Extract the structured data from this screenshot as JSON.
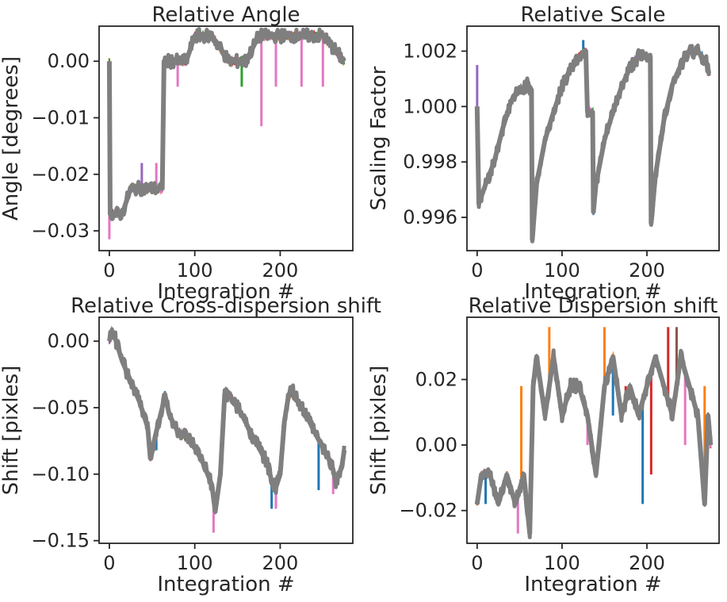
{
  "chart_data": [
    {
      "type": "line",
      "title": "Relative Angle",
      "xlabel": "Integration #",
      "ylabel": "Angle [degrees]",
      "xlim": [
        -12,
        285
      ],
      "ylim": [
        -0.0335,
        0.0062
      ],
      "xticks": [
        0,
        100,
        200
      ],
      "xtick_labels": [
        "0",
        "100",
        "200"
      ],
      "yticks": [
        -0.03,
        -0.02,
        -0.01,
        0.0
      ],
      "ytick_labels": [
        "−0.03",
        "−0.02",
        "−0.01",
        "0.00"
      ],
      "series_colors": [
        "#1f77b4",
        "#ff7f0e",
        "#2ca02c",
        "#d62728",
        "#9467bd",
        "#8c564b",
        "#e377c2"
      ],
      "main_color": "#7f7f7f",
      "main_series": {
        "x": [
          0,
          1,
          2,
          15,
          25,
          30,
          40,
          55,
          62,
          64,
          65,
          70,
          90,
          100,
          110,
          120,
          140,
          150,
          160,
          175,
          200,
          230,
          250,
          275
        ],
        "y": [
          0.0,
          -0.027,
          -0.027,
          -0.027,
          -0.0225,
          -0.0225,
          -0.0225,
          -0.0225,
          -0.0225,
          0.0,
          0.0,
          0.0,
          0.0,
          0.0045,
          0.0045,
          0.0045,
          0.0,
          0.0,
          0.0,
          0.0045,
          0.0045,
          0.0045,
          0.0045,
          0.0
        ]
      },
      "spikes": [
        {
          "x": 0,
          "y": -0.0315,
          "color": "#e377c2"
        },
        {
          "x": 38,
          "y": -0.018,
          "color": "#9467bd"
        },
        {
          "x": 55,
          "y": -0.018,
          "color": "#e377c2"
        },
        {
          "x": 80,
          "y": -0.0045,
          "color": "#e377c2"
        },
        {
          "x": 155,
          "y": -0.0045,
          "color": "#2ca02c"
        },
        {
          "x": 178,
          "y": -0.0115,
          "color": "#e377c2"
        },
        {
          "x": 195,
          "y": -0.0045,
          "color": "#e377c2"
        },
        {
          "x": 225,
          "y": -0.0045,
          "color": "#e377c2"
        },
        {
          "x": 250,
          "y": -0.0045,
          "color": "#e377c2"
        }
      ]
    },
    {
      "type": "line",
      "title": "Relative Scale",
      "xlabel": "Integration #",
      "ylabel": "Scaling Factor",
      "xlim": [
        -12,
        285
      ],
      "ylim": [
        0.9948,
        1.0029
      ],
      "xticks": [
        0,
        100,
        200
      ],
      "xtick_labels": [
        "0",
        "100",
        "200"
      ],
      "yticks": [
        0.996,
        0.998,
        1.0,
        1.002
      ],
      "ytick_labels": [
        "0.996",
        "0.998",
        "1.000",
        "1.002"
      ],
      "series_colors": [
        "#1f77b4",
        "#ff7f0e",
        "#2ca02c",
        "#d62728",
        "#9467bd",
        "#8c564b",
        "#e377c2"
      ],
      "main_color": "#7f7f7f",
      "main_series": {
        "x": [
          0,
          2,
          10,
          20,
          30,
          40,
          50,
          60,
          64,
          65,
          70,
          80,
          90,
          100,
          110,
          120,
          128,
          130,
          131,
          136,
          137,
          140,
          150,
          160,
          170,
          180,
          190,
          200,
          204,
          205,
          210,
          220,
          230,
          240,
          250,
          260,
          270,
          273
        ],
        "y": [
          1.0,
          0.9965,
          0.9972,
          0.998,
          0.9992,
          1.0002,
          1.0006,
          1.0008,
          1.0006,
          0.9952,
          0.9972,
          0.9988,
          0.9998,
          1.0007,
          1.0014,
          1.0018,
          1.002,
          0.9998,
          0.9998,
          0.9998,
          0.9962,
          0.9972,
          0.9988,
          0.9998,
          1.0007,
          1.0014,
          1.0018,
          1.0018,
          1.0018,
          0.9958,
          0.9975,
          0.9995,
          1.0008,
          1.0015,
          1.002,
          1.002,
          1.0016,
          1.0012
        ]
      },
      "spikes": [
        {
          "x": 0,
          "y": 1.0015,
          "color": "#9467bd"
        },
        {
          "x": 65,
          "y": 0.9951,
          "color": "#d62728"
        },
        {
          "x": 125,
          "y": 1.0024,
          "color": "#1f77b4"
        }
      ]
    },
    {
      "type": "line",
      "title": "Relative Cross-dispersion shift",
      "xlabel": "Integration #",
      "ylabel": "Shift [pixles]",
      "xlim": [
        -12,
        285
      ],
      "ylim": [
        -0.152,
        0.018
      ],
      "xticks": [
        0,
        100,
        200
      ],
      "xtick_labels": [
        "0",
        "100",
        "200"
      ],
      "yticks": [
        -0.15,
        -0.1,
        -0.05,
        0.0
      ],
      "ytick_labels": [
        "−0.15",
        "−0.10",
        "−0.05",
        "0.00"
      ],
      "series_colors": [
        "#1f77b4",
        "#ff7f0e",
        "#2ca02c",
        "#d62728",
        "#9467bd",
        "#8c564b",
        "#e377c2"
      ],
      "main_color": "#7f7f7f",
      "main_series": {
        "x": [
          0,
          3,
          8,
          15,
          25,
          35,
          45,
          48,
          55,
          62,
          65,
          70,
          80,
          90,
          100,
          110,
          120,
          124,
          130,
          135,
          136,
          145,
          155,
          165,
          175,
          185,
          190,
          195,
          200,
          205,
          210,
          215,
          220,
          230,
          240,
          250,
          260,
          265,
          272,
          275
        ],
        "y": [
          0.0,
          0.008,
          0.0,
          -0.015,
          -0.03,
          -0.045,
          -0.065,
          -0.088,
          -0.068,
          -0.05,
          -0.04,
          -0.055,
          -0.068,
          -0.072,
          -0.08,
          -0.092,
          -0.108,
          -0.128,
          -0.1,
          -0.04,
          -0.038,
          -0.045,
          -0.055,
          -0.068,
          -0.08,
          -0.092,
          -0.105,
          -0.11,
          -0.1,
          -0.06,
          -0.04,
          -0.038,
          -0.045,
          -0.055,
          -0.068,
          -0.08,
          -0.092,
          -0.105,
          -0.095,
          -0.082
        ]
      },
      "spikes": [
        {
          "x": 55,
          "y": -0.082,
          "color": "#1f77b4"
        },
        {
          "x": 122,
          "y": -0.144,
          "color": "#e377c2"
        },
        {
          "x": 190,
          "y": -0.126,
          "color": "#1f77b4"
        },
        {
          "x": 195,
          "y": -0.126,
          "color": "#e377c2"
        },
        {
          "x": 262,
          "y": -0.115,
          "color": "#e377c2"
        },
        {
          "x": 245,
          "y": -0.112,
          "color": "#1f77b4"
        }
      ]
    },
    {
      "type": "line",
      "title": "Relative Dispersion shift",
      "xlabel": "Integration #",
      "ylabel": "Shift [pixles]",
      "xlim": [
        -12,
        285
      ],
      "ylim": [
        -0.03,
        0.039
      ],
      "xticks": [
        0,
        100,
        200
      ],
      "xtick_labels": [
        "0",
        "100",
        "200"
      ],
      "yticks": [
        -0.02,
        0.0,
        0.02
      ],
      "ytick_labels": [
        "−0.02",
        "0.00",
        "0.02"
      ],
      "series_colors": [
        "#1f77b4",
        "#ff7f0e",
        "#2ca02c",
        "#d62728",
        "#9467bd",
        "#8c564b",
        "#e377c2"
      ],
      "main_color": "#7f7f7f",
      "main_series": {
        "x": [
          0,
          5,
          15,
          25,
          35,
          45,
          55,
          62,
          66,
          70,
          80,
          90,
          100,
          110,
          120,
          130,
          140,
          150,
          160,
          170,
          180,
          190,
          200,
          210,
          220,
          230,
          240,
          250,
          260,
          268,
          272,
          275
        ],
        "y": [
          -0.018,
          -0.009,
          -0.009,
          -0.018,
          -0.009,
          -0.018,
          -0.009,
          -0.027,
          0.018,
          0.027,
          0.009,
          0.027,
          0.009,
          0.018,
          0.018,
          0.009,
          -0.009,
          0.018,
          0.027,
          0.009,
          0.018,
          0.009,
          0.018,
          0.027,
          0.018,
          0.009,
          0.027,
          0.018,
          0.009,
          -0.018,
          0.009,
          0.0
        ]
      },
      "spikes": [
        {
          "x": 10,
          "y": -0.018,
          "color": "#1f77b4"
        },
        {
          "x": 48,
          "y": -0.027,
          "color": "#e377c2"
        },
        {
          "x": 52,
          "y": 0.018,
          "color": "#ff7f0e"
        },
        {
          "x": 85,
          "y": 0.036,
          "color": "#ff7f0e"
        },
        {
          "x": 130,
          "y": 0.0,
          "color": "#e377c2"
        },
        {
          "x": 150,
          "y": 0.036,
          "color": "#ff7f0e"
        },
        {
          "x": 160,
          "y": 0.009,
          "color": "#1f77b4"
        },
        {
          "x": 175,
          "y": 0.018,
          "color": "#d62728"
        },
        {
          "x": 195,
          "y": -0.018,
          "color": "#1f77b4"
        },
        {
          "x": 205,
          "y": -0.009,
          "color": "#d62728"
        },
        {
          "x": 225,
          "y": 0.036,
          "color": "#d62728"
        },
        {
          "x": 235,
          "y": 0.036,
          "color": "#8c564b"
        },
        {
          "x": 245,
          "y": 0.0,
          "color": "#e377c2"
        },
        {
          "x": 268,
          "y": 0.018,
          "color": "#ff7f0e"
        }
      ]
    }
  ]
}
